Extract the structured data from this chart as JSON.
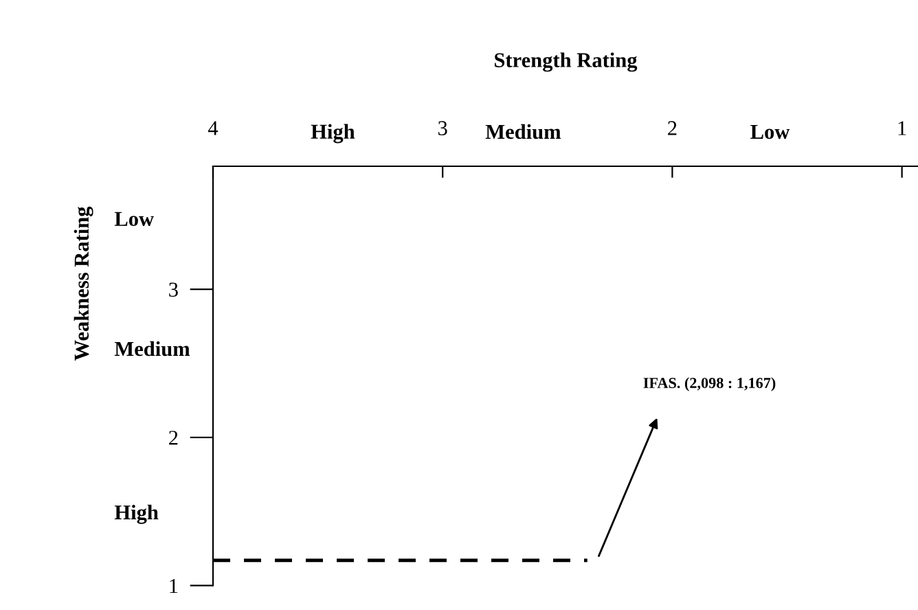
{
  "chart_data": {
    "type": "line",
    "xlabel": "Strength Rating",
    "ylabel": "Weakness Rating",
    "xlim": [
      4,
      0.93
    ],
    "xticks": [
      4,
      3,
      2,
      1
    ],
    "ylim": [
      1,
      3.83
    ],
    "yticks": [
      1,
      2,
      3
    ],
    "grid": false,
    "line_style": "dashed",
    "marker": "none",
    "series": [
      {
        "color": "#000000",
        "x": [
          4,
          2.37
        ],
        "values": [
          1.17,
          1.17
        ]
      }
    ],
    "annotations": [
      "High",
      "Medium",
      "Low",
      "Low",
      "Medium",
      "High",
      "IFAS. (2,098 : 1,167)"
    ]
  }
}
